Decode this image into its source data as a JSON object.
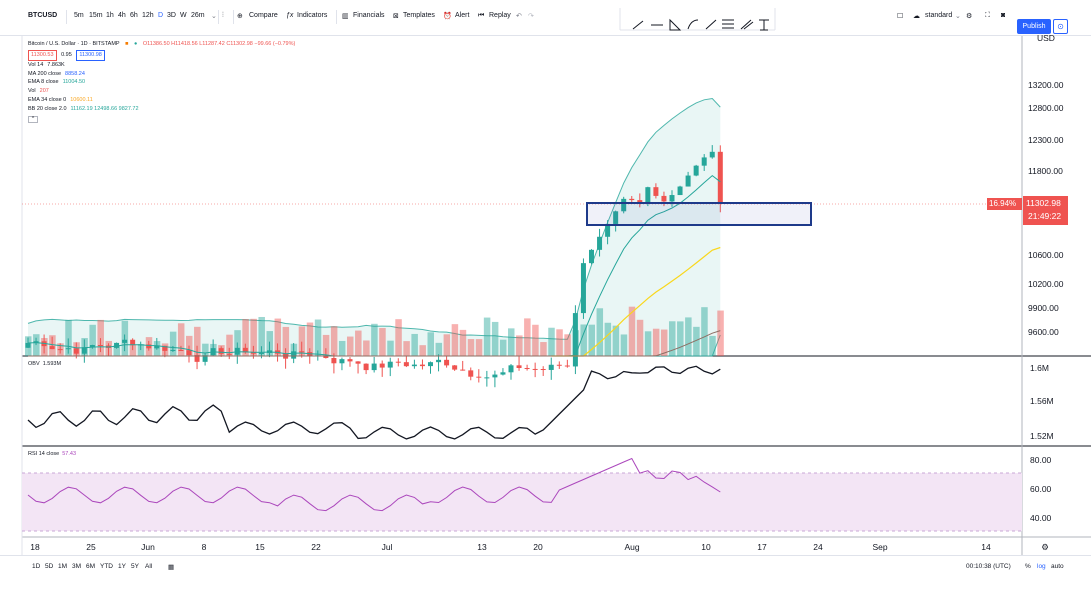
{
  "toolbar": {
    "symbol": "BTCUSD",
    "intervals": [
      "5m",
      "15m",
      "1h",
      "4h",
      "6h",
      "12h",
      "D",
      "3D",
      "W"
    ],
    "custom_interval": "26m",
    "compare": "Compare",
    "indicators": "Indicators",
    "financials": "Financials",
    "templates": "Templates",
    "alert": "Alert",
    "replay": "Replay",
    "layout": "standard",
    "publish": "Publish"
  },
  "legend": {
    "title": "Bitcoin / U.S. Dollar · 1D · BITSTAMP",
    "ohlc": "O11386.50 H11418.56 L11287.42 C11302.98 −99.66 (−0.79%)",
    "bid": "11300.53",
    "spread": "0.95",
    "ask": "11300.98",
    "rows": [
      {
        "label": "Vol 14",
        "value": "7.863K",
        "color": "#131722"
      },
      {
        "label": "MA 200 close",
        "value": "8858.24",
        "color": "#2962ff"
      },
      {
        "label": "EMA 8 close",
        "value": "11004.50",
        "color": "#26a69a"
      },
      {
        "label": "Vol",
        "value": "207",
        "color": "#ef5350"
      },
      {
        "label": "EMA 34 close 0",
        "value": "10600.11",
        "color": "#f9d71c"
      },
      {
        "label": "BB 20 close 2.0",
        "value": "11162.19 12498.66 9827.72",
        "color": "#26a69a"
      }
    ]
  },
  "price_axis": {
    "currency_top": "USD",
    "ticks": [
      "13200.00",
      "12800.00",
      "12300.00",
      "11800.00",
      "10600.00",
      "10200.00",
      "9900.00",
      "9600.00"
    ],
    "last_price": "11302.98",
    "countdown": "21:49:22",
    "measure_pct": "16.94%"
  },
  "obv_pane": {
    "title": "OBV",
    "value": "1.593M",
    "ticks": [
      "1.6M",
      "1.56M",
      "1.52M"
    ]
  },
  "rsi_pane": {
    "title": "RSI 14 close",
    "value": "57.43",
    "ticks": [
      "80.00",
      "60.00",
      "40.00"
    ]
  },
  "time_axis": {
    "labels": [
      "18",
      "25",
      "Jun",
      "8",
      "15",
      "22",
      "Jul",
      "13",
      "20",
      "Aug",
      "10",
      "17",
      "24",
      "Sep",
      "14"
    ]
  },
  "bottom_bar": {
    "ranges": [
      "1D",
      "5D",
      "1M",
      "3M",
      "6M",
      "YTD",
      "1Y",
      "5Y",
      "All"
    ],
    "clock": "00:10:38 (UTC)",
    "pct": "%",
    "log": "log",
    "auto": "auto"
  },
  "colors": {
    "up": "#26a69a",
    "down": "#ef5350",
    "box": "#1e3a8a",
    "bb_fill": "#e0f2f1",
    "rsi_fill": "#f3e5f5"
  }
}
